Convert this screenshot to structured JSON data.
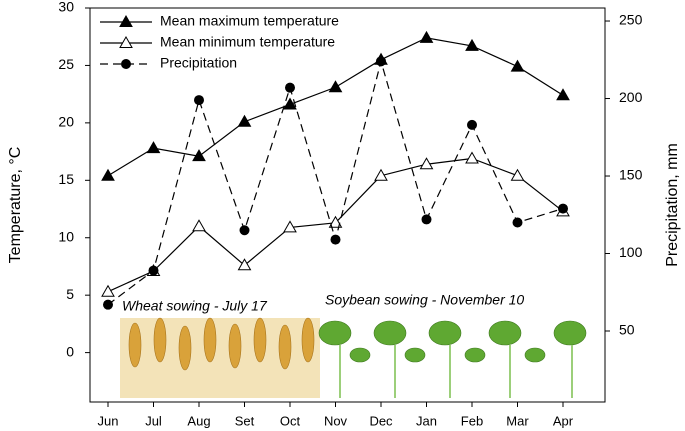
{
  "chart_data": {
    "type": "line",
    "categories": [
      "Jun",
      "Jul",
      "Aug",
      "Set",
      "Oct",
      "Nov",
      "Dec",
      "Jan",
      "Feb",
      "Mar",
      "Apr"
    ],
    "series": [
      {
        "name": "Mean maximum temperature",
        "color": "#000000",
        "marker": "triangle",
        "dash": false,
        "values": [
          15.4,
          17.8,
          17.1,
          20.1,
          21.6,
          23.1,
          25.5,
          27.4,
          26.7,
          24.9,
          22.4
        ]
      },
      {
        "name": "Mean minimum temperature",
        "color": "#000000",
        "marker": "triangle-open",
        "dash": false,
        "values": [
          5.3,
          7.1,
          11.0,
          7.6,
          10.9,
          11.3,
          15.4,
          16.4,
          16.9,
          15.4,
          12.3
        ]
      },
      {
        "name": "Precipitation",
        "color": "#000000",
        "marker": "circle",
        "dash": true,
        "axis": "y2",
        "values": [
          67,
          89,
          199,
          115,
          207,
          109,
          224,
          122,
          183,
          120,
          129
        ]
      }
    ],
    "ylabel": "Temperature, °C",
    "y2label": "Precipitation, mm",
    "ylim": [
      -4.3,
      30
    ],
    "yticks": [
      0,
      5,
      10,
      15,
      20,
      25,
      30
    ],
    "y2lim": [
      4.2,
      258.4
    ],
    "y2ticks": [
      50,
      100,
      150,
      200,
      250
    ],
    "annotations": [
      "Wheat sowing - July 17",
      "Soybean sowing - November 10"
    ],
    "legend": "upper left"
  }
}
